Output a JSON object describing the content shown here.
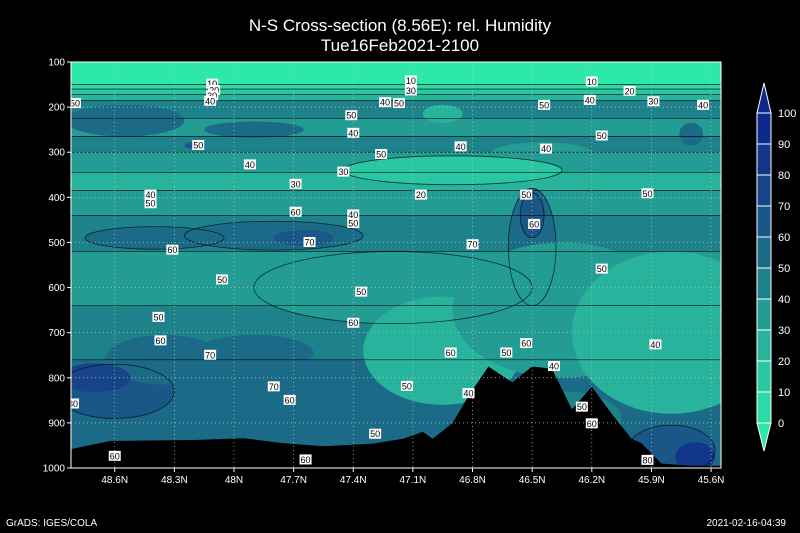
{
  "header": {
    "title": "N-S Cross-section (8.56E): rel. Humidity",
    "subtitle": "Tue16Feb2021-2100"
  },
  "footer": {
    "left": "GrADS: IGES/COLA",
    "right": "2021-02-16-04:39"
  },
  "chart_data": {
    "type": "heatmap",
    "title": "N-S Cross-section (8.56E): rel. Humidity",
    "subtitle": "Tue16Feb2021-2100",
    "x_ticks": [
      "48.6N",
      "48.3N",
      "48N",
      "47.7N",
      "47.4N",
      "47.1N",
      "46.8N",
      "46.5N",
      "46.2N",
      "45.9N",
      "45.6N"
    ],
    "y_ticks": [
      100,
      200,
      300,
      400,
      500,
      600,
      700,
      800,
      900,
      1000
    ],
    "ylim": [
      100,
      1000
    ],
    "grid": true,
    "colorbar": {
      "levels": [
        0,
        10,
        20,
        30,
        40,
        50,
        60,
        70,
        80,
        90,
        100
      ],
      "colors": [
        "#2ee8a8",
        "#2dd9a6",
        "#2ac8a2",
        "#28b49c",
        "#239c94",
        "#1e828a",
        "#1a6a88",
        "#1a5688",
        "#174488",
        "#12378a",
        "#0c2a8c"
      ]
    },
    "contour_labels": [
      {
        "text": "10",
        "lat": 48.11,
        "p": 148
      },
      {
        "text": "20",
        "lat": 48.1,
        "p": 162
      },
      {
        "text": "30",
        "lat": 48.11,
        "p": 174
      },
      {
        "text": "40",
        "lat": 48.12,
        "p": 186
      },
      {
        "text": "50",
        "lat": 48.8,
        "p": 191
      },
      {
        "text": "10",
        "lat": 47.11,
        "p": 141
      },
      {
        "text": "30",
        "lat": 47.11,
        "p": 163
      },
      {
        "text": "40",
        "lat": 47.24,
        "p": 189
      },
      {
        "text": "50",
        "lat": 47.17,
        "p": 191
      },
      {
        "text": "50",
        "lat": 46.44,
        "p": 195
      },
      {
        "text": "10",
        "lat": 46.2,
        "p": 143
      },
      {
        "text": "20",
        "lat": 46.01,
        "p": 164
      },
      {
        "text": "40",
        "lat": 46.21,
        "p": 184
      },
      {
        "text": "30",
        "lat": 45.89,
        "p": 187
      },
      {
        "text": "40",
        "lat": 45.64,
        "p": 195
      },
      {
        "text": "50",
        "lat": 47.41,
        "p": 218
      },
      {
        "text": "40",
        "lat": 47.4,
        "p": 257
      },
      {
        "text": "50",
        "lat": 46.15,
        "p": 263
      },
      {
        "text": "50",
        "lat": 48.18,
        "p": 284
      },
      {
        "text": "40",
        "lat": 46.86,
        "p": 287
      },
      {
        "text": "40",
        "lat": 46.43,
        "p": 292
      },
      {
        "text": "50",
        "lat": 47.26,
        "p": 304
      },
      {
        "text": "40",
        "lat": 47.92,
        "p": 327
      },
      {
        "text": "30",
        "lat": 47.45,
        "p": 343
      },
      {
        "text": "30",
        "lat": 47.69,
        "p": 370
      },
      {
        "text": "40",
        "lat": 48.42,
        "p": 394
      },
      {
        "text": "20",
        "lat": 47.06,
        "p": 394
      },
      {
        "text": "50",
        "lat": 46.53,
        "p": 394
      },
      {
        "text": "50",
        "lat": 45.92,
        "p": 391
      },
      {
        "text": "50",
        "lat": 48.42,
        "p": 413
      },
      {
        "text": "60",
        "lat": 47.69,
        "p": 432
      },
      {
        "text": "40",
        "lat": 47.4,
        "p": 438
      },
      {
        "text": "50",
        "lat": 47.4,
        "p": 457
      },
      {
        "text": "60",
        "lat": 46.49,
        "p": 459
      },
      {
        "text": "70",
        "lat": 47.62,
        "p": 499
      },
      {
        "text": "70",
        "lat": 46.8,
        "p": 504
      },
      {
        "text": "60",
        "lat": 48.31,
        "p": 516
      },
      {
        "text": "50",
        "lat": 46.15,
        "p": 558
      },
      {
        "text": "50",
        "lat": 48.06,
        "p": 582
      },
      {
        "text": "50",
        "lat": 47.36,
        "p": 609
      },
      {
        "text": "50",
        "lat": 48.38,
        "p": 665
      },
      {
        "text": "60",
        "lat": 47.4,
        "p": 678
      },
      {
        "text": "60",
        "lat": 46.53,
        "p": 723
      },
      {
        "text": "60",
        "lat": 48.37,
        "p": 717
      },
      {
        "text": "40",
        "lat": 45.88,
        "p": 726
      },
      {
        "text": "70",
        "lat": 48.12,
        "p": 749
      },
      {
        "text": "60",
        "lat": 46.91,
        "p": 744
      },
      {
        "text": "50",
        "lat": 46.63,
        "p": 744
      },
      {
        "text": "40",
        "lat": 46.39,
        "p": 774
      },
      {
        "text": "70",
        "lat": 47.8,
        "p": 819
      },
      {
        "text": "50",
        "lat": 47.13,
        "p": 818
      },
      {
        "text": "40",
        "lat": 46.82,
        "p": 834
      },
      {
        "text": "60",
        "lat": 47.72,
        "p": 849
      },
      {
        "text": "80",
        "lat": 48.81,
        "p": 857
      },
      {
        "text": "50",
        "lat": 46.25,
        "p": 864
      },
      {
        "text": "60",
        "lat": 46.2,
        "p": 901
      },
      {
        "text": "50",
        "lat": 47.29,
        "p": 924
      },
      {
        "text": "60",
        "lat": 48.6,
        "p": 973
      },
      {
        "text": "60",
        "lat": 47.64,
        "p": 981
      },
      {
        "text": "80",
        "lat": 45.92,
        "p": 982
      }
    ]
  }
}
